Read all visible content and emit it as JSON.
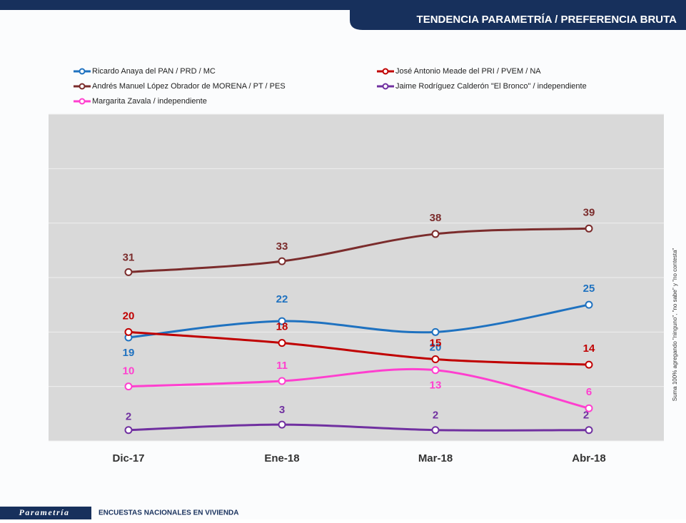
{
  "header": {
    "title": "TENDENCIA PARAMETRÍA / PREFERENCIA BRUTA"
  },
  "chart_data": {
    "type": "line",
    "categories": [
      "Dic-17",
      "Ene-18",
      "Mar-18",
      "Abr-18"
    ],
    "series": [
      {
        "name": "Ricardo Anaya del PAN / PRD / MC",
        "color": "#1f72c0",
        "values": [
          19,
          22,
          20,
          25
        ]
      },
      {
        "name": "José Antonio Meade del PRI / PVEM / NA",
        "color": "#c00000",
        "values": [
          20,
          18,
          15,
          14
        ]
      },
      {
        "name": "Andrés Manuel López Obrador de MORENA / PT / PES",
        "color": "#7b2c2c",
        "values": [
          31,
          33,
          38,
          39
        ]
      },
      {
        "name": "Jaime Rodríguez Calderón  \"El Bronco\" / independiente",
        "color": "#7030a0",
        "values": [
          2,
          3,
          2,
          2
        ]
      },
      {
        "name": "Margarita Zavala / independiente",
        "color": "#ff3fcf",
        "values": [
          10,
          11,
          13,
          6
        ]
      }
    ],
    "ylim": [
      0,
      60
    ],
    "yticks": [
      0,
      10,
      20,
      30,
      40,
      50,
      60
    ],
    "grid": true,
    "side_note": "Suma 100% agregando \"ninguno\", \"no sabe\" y \"no contesta\""
  },
  "footer": {
    "brand": "Parametría",
    "text": "ENCUESTAS NACIONALES EN VIVIENDA"
  }
}
